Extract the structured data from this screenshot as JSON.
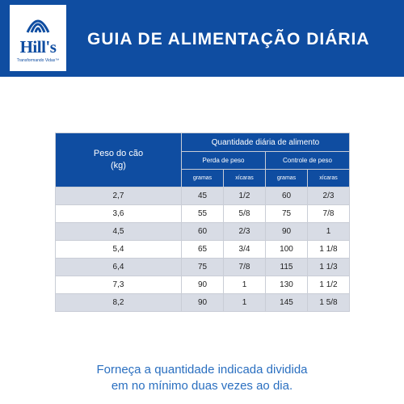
{
  "header": {
    "brand": "Hill's",
    "tagline": "Transformando Vidas™",
    "title": "GUIA DE ALIMENTAÇÃO DIÁRIA",
    "colors": {
      "header_bg": "#0f4da1",
      "text": "#ffffff"
    }
  },
  "table": {
    "weight_header_line1": "Peso do cão",
    "weight_header_line2": "(kg)",
    "amount_header": "Quantidade diária de alimento",
    "groups": [
      "Perda de peso",
      "Controle de peso"
    ],
    "units": [
      "gramas",
      "xícaras",
      "gramas",
      "xícaras"
    ],
    "rows": [
      [
        "2,7",
        "45",
        "1/2",
        "60",
        "2/3"
      ],
      [
        "3,6",
        "55",
        "5/8",
        "75",
        "7/8"
      ],
      [
        "4,5",
        "60",
        "2/3",
        "90",
        "1"
      ],
      [
        "5,4",
        "65",
        "3/4",
        "100",
        "1 1/8"
      ],
      [
        "6,4",
        "75",
        "7/8",
        "115",
        "1 1/3"
      ],
      [
        "7,3",
        "90",
        "1",
        "130",
        "1 1/2"
      ],
      [
        "8,2",
        "90",
        "1",
        "145",
        "1 5/8"
      ]
    ],
    "colors": {
      "header": "#0f4da1",
      "row_shaded": "#d8dce5",
      "row_plain": "#ffffff"
    }
  },
  "footer": {
    "line1": "Forneça a quantidade indicada dividida",
    "line2": "em no mínimo duas vezes ao dia.",
    "color": "#2a6fc0"
  }
}
